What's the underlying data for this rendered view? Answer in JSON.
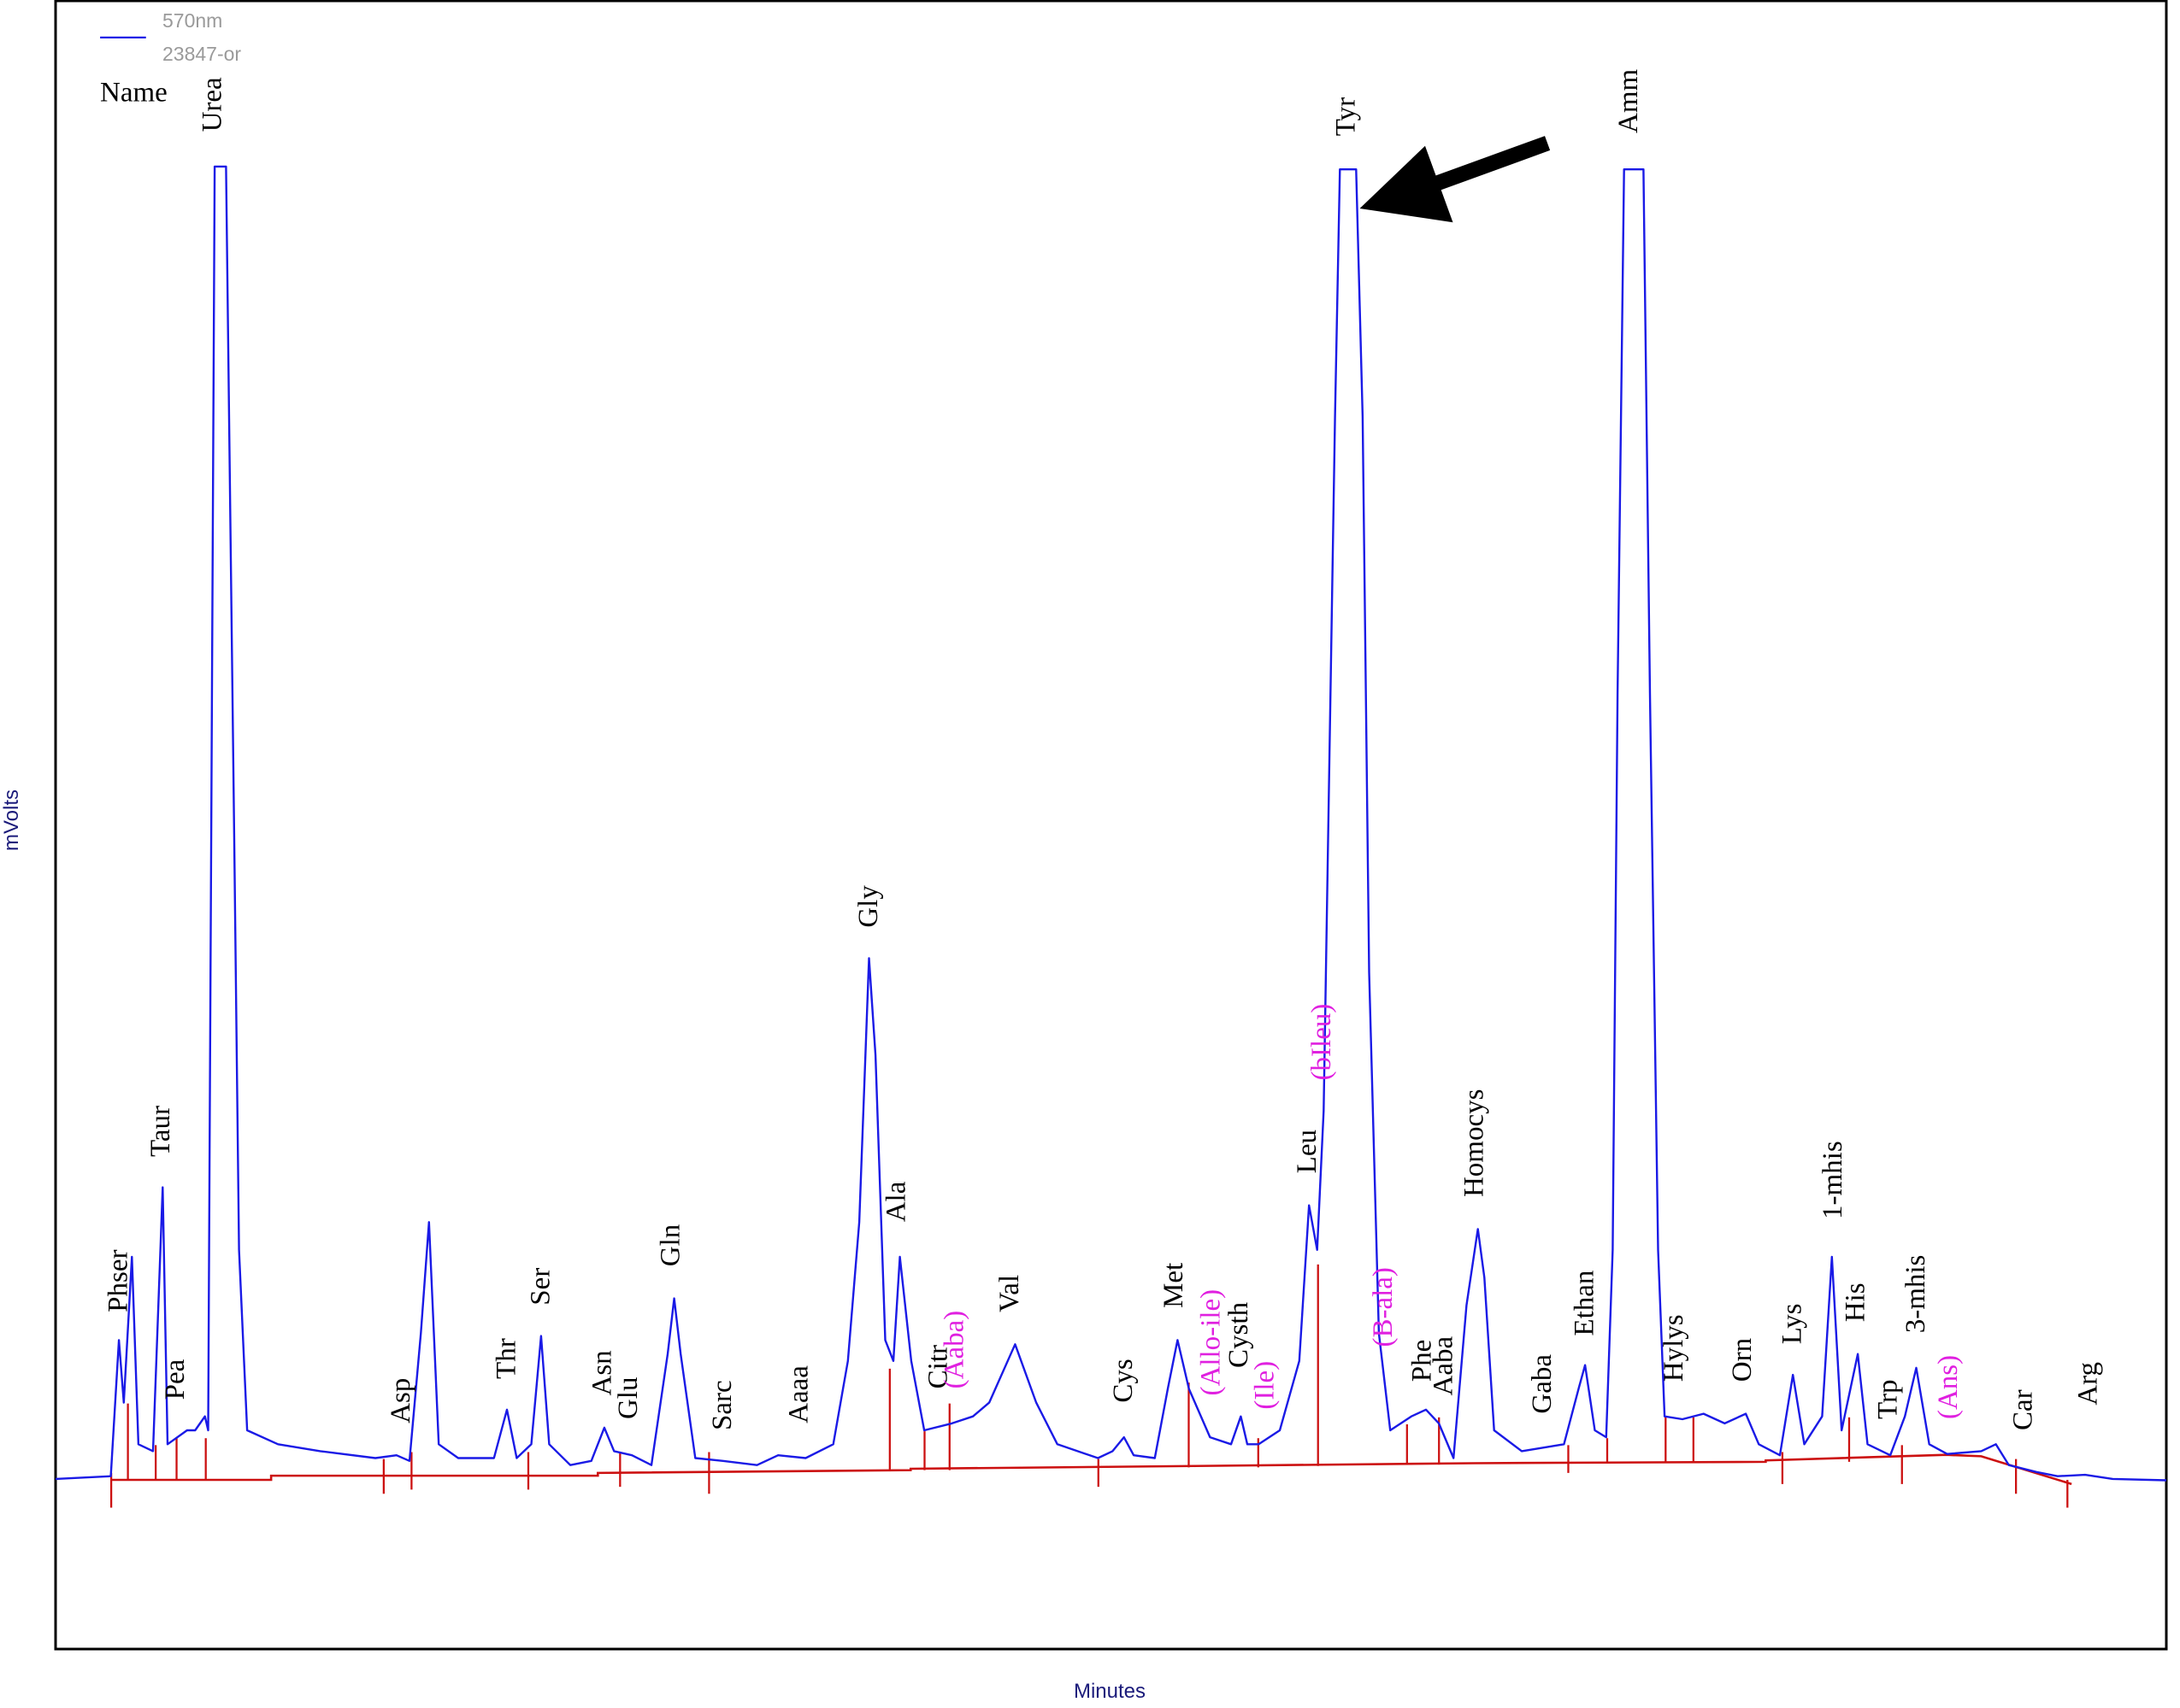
{
  "chart_data": {
    "type": "line",
    "xlabel": "Minutes",
    "ylabel": "mVolts",
    "column_header": "Name",
    "legend_subtitle": "23847-or",
    "xlim": [
      0,
      130
    ],
    "ylim": [
      -115,
      1000
    ],
    "x": [
      0,
      3.4,
      3.9,
      4.2,
      4.7,
      5.1,
      6.0,
      6.6,
      6.9,
      8.1,
      8.6,
      9.2,
      9.4,
      9.8,
      10.5,
      11.0,
      11.3,
      11.8,
      13.7,
      16.3,
      19.7,
      21.0,
      21.8,
      22.5,
      23.0,
      23.6,
      24.8,
      27.0,
      27.8,
      28.4,
      29.3,
      29.9,
      30.4,
      31.7,
      33.0,
      33.8,
      34.4,
      35.5,
      36.7,
      37.7,
      38.1,
      38.5,
      39.4,
      41.1,
      43.2,
      44.5,
      46.2,
      47.9,
      48.8,
      49.5,
      50.1,
      50.5,
      51.1,
      51.6,
      52.0,
      52.7,
      53.5,
      55.2,
      56.5,
      57.5,
      59.1,
      60.4,
      61.7,
      64.2,
      65.1,
      65.8,
      66.4,
      67.7,
      68.5,
      69.1,
      69.8,
      71.1,
      72.4,
      73.0,
      73.4,
      74.1,
      75.4,
      76.6,
      77.2,
      77.7,
      78.1,
      78.8,
      79.1,
      80.1,
      80.5,
      80.9,
      81.5,
      82.2,
      83.5,
      84.4,
      85.2,
      86.1,
      86.9,
      87.6,
      88.0,
      88.6,
      90.3,
      92.9,
      93.8,
      94.2,
      94.8,
      95.5,
      95.9,
      96.2,
      96.6,
      97.8,
      98.2,
      98.7,
      99.1,
      100.2,
      101.5,
      102.8,
      104.1,
      104.9,
      106.2,
      107.0,
      107.7,
      108.8,
      109.4,
      110.0,
      111.0,
      111.6,
      113.0,
      113.9,
      114.6,
      115.4,
      116.5,
      118.6,
      119.5,
      120.3,
      122.0,
      123.3,
      125.0,
      126.7,
      130
    ],
    "series": [
      {
        "name": "570nm",
        "color": "#1a1ae6",
        "values": [
          0,
          1.9,
          93.9,
          51.6,
          150.2,
          23.5,
          18.8,
          197.2,
          23.5,
          32.9,
          32.9,
          42.3,
          32.9,
          887.4,
          887.4,
          436.6,
          154.9,
          32.9,
          23.5,
          18.8,
          14.1,
          16.0,
          12.2,
          98.6,
          173.7,
          23.5,
          14.1,
          14.1,
          46.9,
          14.1,
          23.5,
          96.7,
          23.5,
          9.4,
          12.2,
          34.7,
          18.8,
          16.0,
          9.4,
          84.5,
          122.1,
          84.5,
          14.1,
          12.2,
          9.4,
          16.0,
          14.1,
          23.5,
          79.8,
          173.7,
          352.1,
          286.4,
          93.9,
          79.8,
          150.2,
          79.8,
          32.9,
          37.6,
          42.3,
          51.6,
          91.1,
          51.6,
          23.5,
          14.1,
          18.8,
          28.2,
          16.0,
          14.1,
          61.0,
          93.9,
          61.0,
          28.2,
          23.5,
          42.3,
          23.5,
          23.5,
          32.9,
          79.8,
          185.0,
          154.9,
          248.8,
          718.3,
          885.5,
          885.5,
          718.3,
          342.7,
          98.6,
          32.9,
          42.3,
          46.9,
          37.6,
          14.1,
          117.4,
          169.0,
          136.2,
          32.9,
          18.8,
          23.5,
          61.0,
          77.0,
          32.9,
          28.2,
          154.9,
          530.5,
          885.5,
          885.5,
          530.5,
          154.9,
          42.3,
          40.4,
          44.1,
          37.6,
          44.1,
          23.5,
          16.0,
          70.4,
          23.5,
          42.3,
          150.2,
          32.9,
          84.5,
          23.5,
          16.0,
          42.3,
          75.1,
          23.5,
          16.9,
          18.8,
          23.5,
          9.4,
          4.7,
          1.9,
          2.8,
          0,
          -0.9
        ]
      }
    ],
    "annotations": [
      {
        "text": "Phser",
        "x": 4.0,
        "y": 112.7,
        "color": "#000000"
      },
      {
        "text": "Taur",
        "x": 6.6,
        "y": 217.8,
        "color": "#000000"
      },
      {
        "text": "Pea",
        "x": 7.5,
        "y": 53.5,
        "color": "#000000"
      },
      {
        "text": "Urea",
        "x": 9.8,
        "y": 910.8,
        "color": "#000000"
      },
      {
        "text": "Asp",
        "x": 21.4,
        "y": 37.6,
        "color": "#000000"
      },
      {
        "text": "Thr",
        "x": 27.9,
        "y": 67.6,
        "color": "#000000"
      },
      {
        "text": "Ser",
        "x": 30.0,
        "y": 117.4,
        "color": "#000000"
      },
      {
        "text": "Asn",
        "x": 33.8,
        "y": 56.3,
        "color": "#000000"
      },
      {
        "text": "Glu",
        "x": 35.4,
        "y": 40.4,
        "color": "#000000"
      },
      {
        "text": "Gln",
        "x": 38.0,
        "y": 143.7,
        "color": "#000000"
      },
      {
        "text": "Sarc",
        "x": 41.2,
        "y": 32.9,
        "color": "#000000"
      },
      {
        "text": "Aaaa",
        "x": 45.9,
        "y": 37.6,
        "color": "#000000"
      },
      {
        "text": "Gly",
        "x": 50.2,
        "y": 372.8,
        "color": "#000000"
      },
      {
        "text": "Ala",
        "x": 51.9,
        "y": 173.7,
        "color": "#000000"
      },
      {
        "text": "Citr",
        "x": 54.5,
        "y": 61.0,
        "color": "#000000"
      },
      {
        "text": "(Aaba)",
        "x": 55.5,
        "y": 61.0,
        "color": "#e020e0"
      },
      {
        "text": "Val",
        "x": 58.9,
        "y": 112.7,
        "color": "#000000"
      },
      {
        "text": "Cys",
        "x": 65.9,
        "y": 51.6,
        "color": "#000000"
      },
      {
        "text": "Met",
        "x": 69.0,
        "y": 115.5,
        "color": "#000000"
      },
      {
        "text": "(Allo-ile)",
        "x": 71.3,
        "y": 56.3,
        "color": "#e020e0"
      },
      {
        "text": "Cysth",
        "x": 73.0,
        "y": 75.1,
        "color": "#000000"
      },
      {
        "text": "(Ile)",
        "x": 74.6,
        "y": 47.0,
        "color": "#e020e0"
      },
      {
        "text": "Leu",
        "x": 77.2,
        "y": 206.6,
        "color": "#000000"
      },
      {
        "text": "(bIleu)",
        "x": 78.1,
        "y": 269.5,
        "color": "#e020e0"
      },
      {
        "text": "Tyr",
        "x": 79.6,
        "y": 908.0,
        "color": "#000000"
      },
      {
        "text": "(B-ala)",
        "x": 81.9,
        "y": 89.2,
        "color": "#e020e0"
      },
      {
        "text": "Phe",
        "x": 84.3,
        "y": 65.7,
        "color": "#000000"
      },
      {
        "text": "Aaba",
        "x": 85.6,
        "y": 56.3,
        "color": "#000000"
      },
      {
        "text": "Homocys",
        "x": 87.5,
        "y": 190.6,
        "color": "#000000"
      },
      {
        "text": "Gaba",
        "x": 91.7,
        "y": 44.1,
        "color": "#000000"
      },
      {
        "text": "Ethan",
        "x": 94.3,
        "y": 96.7,
        "color": "#000000"
      },
      {
        "text": "Amm",
        "x": 97.0,
        "y": 909.9,
        "color": "#000000"
      },
      {
        "text": "Hylys",
        "x": 99.8,
        "y": 65.7,
        "color": "#000000"
      },
      {
        "text": "Orn",
        "x": 104.0,
        "y": 65.7,
        "color": "#000000"
      },
      {
        "text": "Lys",
        "x": 107.1,
        "y": 91.1,
        "color": "#000000"
      },
      {
        "text": "1-mhis",
        "x": 109.6,
        "y": 175.6,
        "color": "#000000"
      },
      {
        "text": "His",
        "x": 111.0,
        "y": 106.1,
        "color": "#000000"
      },
      {
        "text": "Trp",
        "x": 113.0,
        "y": 40.4,
        "color": "#000000"
      },
      {
        "text": "3-mhis",
        "x": 114.7,
        "y": 98.6,
        "color": "#000000"
      },
      {
        "text": "(Ans)",
        "x": 116.7,
        "y": 40.4,
        "color": "#e020e0"
      },
      {
        "text": "Car",
        "x": 121.3,
        "y": 32.9,
        "color": "#000000"
      },
      {
        "text": "Arg",
        "x": 125.3,
        "y": 49.8,
        "color": "#000000"
      }
    ]
  }
}
